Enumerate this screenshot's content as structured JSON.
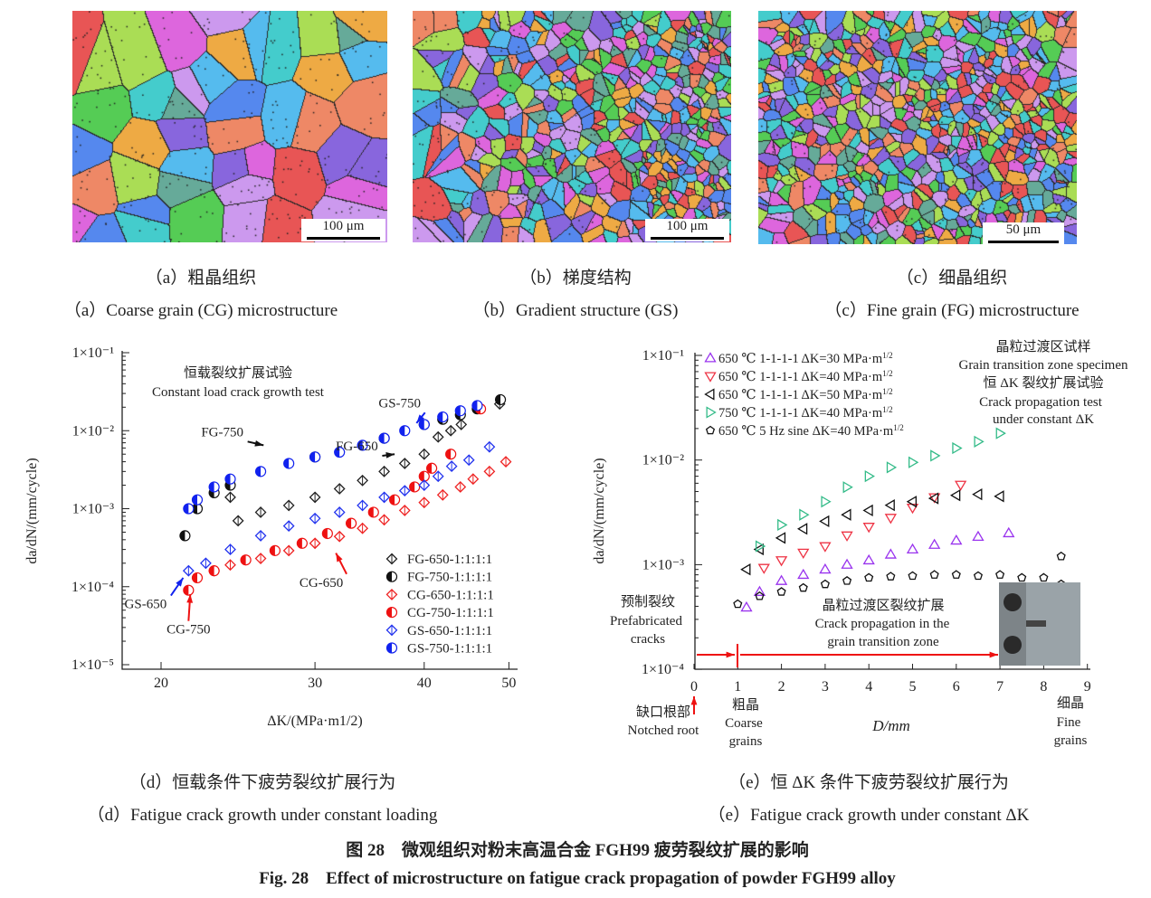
{
  "panels_micro": [
    {
      "id": "a",
      "scale_bar": "100 μm",
      "caption_cn": "（a）粗晶组织",
      "caption_en": "（a）Coarse grain (CG) microstructure",
      "grain": "coarse"
    },
    {
      "id": "b",
      "scale_bar": "100 μm",
      "caption_cn": "（b）梯度结构",
      "caption_en": "（b）Gradient structure (GS)",
      "grain": "gradient"
    },
    {
      "id": "c",
      "scale_bar": "50 μm",
      "caption_cn": "（c）细晶组织",
      "caption_en": "（c）Fine grain (FG) microstructure",
      "grain": "fine"
    }
  ],
  "chart_data": [
    {
      "type": "scatter",
      "caption_cn": "（d）恒载条件下疲劳裂纹扩展行为",
      "caption_en": "（d）Fatigue crack growth under constant loading",
      "annotation_cn": "恒载裂纹扩展试验",
      "annotation_en": "Constant load crack growth test",
      "xlabel": "ΔK/(MPa·m1/2)",
      "ylabel": "da/dN/(mm/cycle)",
      "xscale": "log",
      "yscale": "log",
      "xlim": [
        17.5,
        51
      ],
      "ylim": [
        1e-05,
        0.1
      ],
      "xticks": [
        20,
        30,
        40,
        50
      ],
      "yticks": [
        {
          "v": 0.1,
          "label": "1×10⁻¹"
        },
        {
          "v": 0.01,
          "label": "1×10⁻²"
        },
        {
          "v": 0.001,
          "label": "1×10⁻³"
        },
        {
          "v": 0.0001,
          "label": "1×10⁻⁴"
        },
        {
          "v": 1e-05,
          "label": "1×10⁻⁵"
        }
      ],
      "legend_position": "bottom-right",
      "series": [
        {
          "name": "FG-650-1:1:1:1",
          "marker": "diamond-open",
          "color": "#222222",
          "points": [
            [
              24,
              0.0014
            ],
            [
              24.5,
              0.0007
            ],
            [
              26,
              0.0009
            ],
            [
              28,
              0.0011
            ],
            [
              30,
              0.0014
            ],
            [
              32,
              0.0018
            ],
            [
              34,
              0.0023
            ],
            [
              36,
              0.003
            ],
            [
              38,
              0.0038
            ],
            [
              40,
              0.005
            ],
            [
              41.5,
              0.0083
            ],
            [
              42.9,
              0.01
            ],
            [
              44.1,
              0.012
            ],
            [
              48.8,
              0.022
            ]
          ]
        },
        {
          "name": "FG-750-1:1:1:1",
          "marker": "circle-half",
          "color": "#111111",
          "points": [
            [
              21.3,
              0.00045
            ],
            [
              22,
              0.001
            ],
            [
              23,
              0.0016
            ],
            [
              24,
              0.002
            ],
            [
              30,
              0.0046
            ],
            [
              36,
              0.008
            ],
            [
              40,
              0.012
            ],
            [
              42,
              0.014
            ],
            [
              44,
              0.016
            ],
            [
              46,
              0.019
            ],
            [
              48.9,
              0.025
            ]
          ]
        },
        {
          "name": "CG-650-1:1:1:1",
          "marker": "diamond-open",
          "color": "#ee2222",
          "points": [
            [
              23,
              0.00016
            ],
            [
              24,
              0.00019
            ],
            [
              26,
              0.00023
            ],
            [
              28,
              0.00029
            ],
            [
              30,
              0.00036
            ],
            [
              32,
              0.00044
            ],
            [
              34,
              0.00056
            ],
            [
              36,
              0.00072
            ],
            [
              38,
              0.00095
            ],
            [
              40,
              0.0012
            ],
            [
              42,
              0.0015
            ],
            [
              44,
              0.0019
            ],
            [
              45.5,
              0.0024
            ],
            [
              47.5,
              0.003
            ],
            [
              49.6,
              0.004
            ]
          ]
        },
        {
          "name": "CG-750-1:1:1:1",
          "marker": "circle-half",
          "color": "#ee1111",
          "points": [
            [
              21.5,
              9e-05
            ],
            [
              22,
              0.00013
            ],
            [
              23,
              0.00016
            ],
            [
              25,
              0.00022
            ],
            [
              27,
              0.00029
            ],
            [
              29,
              0.00036
            ],
            [
              31,
              0.00048
            ],
            [
              33,
              0.00065
            ],
            [
              35,
              0.0009
            ],
            [
              37,
              0.0013
            ],
            [
              39,
              0.0019
            ],
            [
              40,
              0.0026
            ],
            [
              40.8,
              0.0033
            ],
            [
              42.9,
              0.005
            ],
            [
              46.4,
              0.019
            ]
          ]
        },
        {
          "name": "GS-650-1:1:1:1",
          "marker": "diamond-open",
          "color": "#2233ee",
          "points": [
            [
              21.5,
              0.00016
            ],
            [
              22.5,
              0.0002
            ],
            [
              24,
              0.0003
            ],
            [
              26,
              0.00045
            ],
            [
              28,
              0.0006
            ],
            [
              30,
              0.00075
            ],
            [
              32,
              0.0009
            ],
            [
              34,
              0.0011
            ],
            [
              36,
              0.0014
            ],
            [
              38,
              0.0017
            ],
            [
              40,
              0.002
            ],
            [
              41.5,
              0.0026
            ],
            [
              43,
              0.0035
            ],
            [
              45,
              0.0042
            ],
            [
              47.5,
              0.0062
            ]
          ]
        },
        {
          "name": "GS-750-1:1:1:1",
          "marker": "circle-half",
          "color": "#1122ee",
          "points": [
            [
              21.5,
              0.001
            ],
            [
              22,
              0.0013
            ],
            [
              23,
              0.0019
            ],
            [
              24,
              0.0024
            ],
            [
              26,
              0.003
            ],
            [
              28,
              0.0038
            ],
            [
              30,
              0.0046
            ],
            [
              32,
              0.0053
            ],
            [
              34,
              0.0065
            ],
            [
              36,
              0.008
            ],
            [
              38,
              0.01
            ],
            [
              40,
              0.012
            ],
            [
              42,
              0.015
            ],
            [
              44,
              0.018
            ],
            [
              46,
              0.021
            ]
          ]
        }
      ],
      "labels": [
        {
          "text": "GS-750",
          "at": [
            37.5,
            0.02
          ],
          "arrow_to": [
            39.2,
            0.0125
          ],
          "color": "#1122ee"
        },
        {
          "text": "FG-750",
          "at": [
            23.5,
            0.0085
          ],
          "arrow_to": [
            26.2,
            0.0065
          ],
          "color": "#111111"
        },
        {
          "text": "FG-650",
          "at": [
            33.5,
            0.0056
          ],
          "arrow_to": [
            37,
            0.005
          ],
          "color": "#111111"
        },
        {
          "text": "CG-650",
          "at": [
            30.5,
            0.0001
          ],
          "arrow_to": [
            31.7,
            0.00027
          ],
          "color": "#ee1111"
        },
        {
          "text": "GS-650",
          "at": [
            19.2,
            5.3e-05
          ],
          "arrow_to": [
            21.2,
            0.00013
          ],
          "color": "#1122ee"
        },
        {
          "text": "CG-750",
          "at": [
            21.5,
            2.5e-05
          ],
          "arrow_to": [
            21.6,
            8e-05
          ],
          "color": "#ee1111"
        }
      ]
    },
    {
      "type": "scatter",
      "caption_cn": "（e）恒 ΔK 条件下疲劳裂纹扩展行为",
      "caption_en": "（e）Fatigue crack growth under constant ΔK",
      "annotation_cn": [
        "晶粒过渡区试样",
        "恒 ΔK 裂纹扩展试验"
      ],
      "annotation_en": [
        "Grain transition zone specimen",
        "Crack propagation test",
        "under constant ΔK"
      ],
      "xlabel": "D/mm",
      "ylabel": "da/dN/(mm/cycle)",
      "xscale": "linear",
      "yscale": "log",
      "xlim": [
        0,
        9
      ],
      "ylim": [
        0.0001,
        0.1
      ],
      "xticks": [
        0,
        1,
        2,
        3,
        4,
        5,
        6,
        7,
        8,
        9
      ],
      "yticks": [
        {
          "v": 0.1,
          "label": "1×10⁻¹"
        },
        {
          "v": 0.01,
          "label": "1×10⁻²"
        },
        {
          "v": 0.001,
          "label": "1×10⁻³"
        },
        {
          "v": 0.0001,
          "label": "1×10⁻⁴"
        }
      ],
      "legend_position": "top-left",
      "series": [
        {
          "name": "650 ℃ 1-1-1-1 ΔK=30 MPa·m1/2",
          "marker": "triangle-up",
          "color": "#9933ee",
          "points": [
            [
              1.2,
              0.00039
            ],
            [
              1.5,
              0.00055
            ],
            [
              2,
              0.0007
            ],
            [
              2.5,
              0.0008
            ],
            [
              3,
              0.0009
            ],
            [
              3.5,
              0.001
            ],
            [
              4,
              0.0011
            ],
            [
              4.5,
              0.00125
            ],
            [
              5,
              0.0014
            ],
            [
              5.5,
              0.00155
            ],
            [
              6,
              0.0017
            ],
            [
              6.5,
              0.00185
            ],
            [
              7.2,
              0.002
            ]
          ]
        },
        {
          "name": "650 ℃ 1-1-1-1 ΔK=40 MPa·m1/2",
          "marker": "triangle-down",
          "color": "#ee3344",
          "points": [
            [
              1.6,
              0.00093
            ],
            [
              2,
              0.0011
            ],
            [
              2.5,
              0.0013
            ],
            [
              3,
              0.0015
            ],
            [
              3.5,
              0.0019
            ],
            [
              4,
              0.0023
            ],
            [
              4.5,
              0.0028
            ],
            [
              5,
              0.0035
            ],
            [
              5.5,
              0.0044
            ],
            [
              6.1,
              0.0058
            ]
          ]
        },
        {
          "name": "650 ℃ 1-1-1-1 ΔK=50 MPa·m1/2",
          "marker": "triangle-left",
          "color": "#111111",
          "points": [
            [
              1.2,
              0.0009
            ],
            [
              1.5,
              0.0014
            ],
            [
              2,
              0.0018
            ],
            [
              2.5,
              0.0022
            ],
            [
              3,
              0.0026
            ],
            [
              3.5,
              0.003
            ],
            [
              4,
              0.0033
            ],
            [
              4.5,
              0.0037
            ],
            [
              5,
              0.004
            ],
            [
              5.5,
              0.0043
            ],
            [
              6,
              0.0046
            ],
            [
              6.5,
              0.0047
            ],
            [
              7,
              0.0045
            ]
          ]
        },
        {
          "name": "750 ℃ 1-1-1-1 ΔK=40 MPa·m1/2",
          "marker": "triangle-right",
          "color": "#33bb88",
          "points": [
            [
              1.5,
              0.0015
            ],
            [
              2,
              0.0024
            ],
            [
              2.5,
              0.003
            ],
            [
              3,
              0.004
            ],
            [
              3.5,
              0.0055
            ],
            [
              4,
              0.007
            ],
            [
              4.5,
              0.0085
            ],
            [
              5,
              0.0095
            ],
            [
              5.5,
              0.011
            ],
            [
              6,
              0.013
            ],
            [
              6.5,
              0.015
            ],
            [
              7,
              0.018
            ]
          ]
        },
        {
          "name": "650 ℃ 5 Hz sine ΔK=40 MPa·m1/2",
          "marker": "pentagon",
          "color": "#111111",
          "points": [
            [
              1,
              0.00042
            ],
            [
              1.5,
              0.0005
            ],
            [
              2,
              0.00055
            ],
            [
              2.5,
              0.0006
            ],
            [
              3,
              0.00065
            ],
            [
              3.5,
              0.0007
            ],
            [
              4,
              0.00075
            ],
            [
              4.5,
              0.00077
            ],
            [
              5,
              0.00078
            ],
            [
              5.5,
              0.0008
            ],
            [
              6,
              0.0008
            ],
            [
              6.5,
              0.00078
            ],
            [
              7,
              0.0008
            ],
            [
              7.5,
              0.00075
            ],
            [
              8,
              0.00075
            ],
            [
              8.4,
              0.00065
            ],
            [
              8.4,
              0.0012
            ]
          ]
        }
      ],
      "zone_labels": {
        "prefab_cn": "预制裂纹",
        "prefab_en": [
          "Prefabricated",
          "cracks"
        ],
        "transition_cn": "晶粒过渡区裂纹扩展",
        "transition_en": [
          "Crack propagation in the",
          "grain transition zone"
        ],
        "notch_cn": "缺口根部",
        "notch_en": "Notched root",
        "coarse_cn": "粗晶",
        "coarse_en": [
          "Coarse",
          "grains"
        ],
        "fine_cn": "细晶",
        "fine_en": [
          "Fine",
          "grains"
        ]
      }
    }
  ],
  "figure": {
    "title_cn": "图 28　微观组织对粉末高温合金 FGH99 疲劳裂纹扩展的影响",
    "title_en": "Fig. 28　Effect of microstructure on fatigue crack propagation of powder FGH99 alloy"
  }
}
